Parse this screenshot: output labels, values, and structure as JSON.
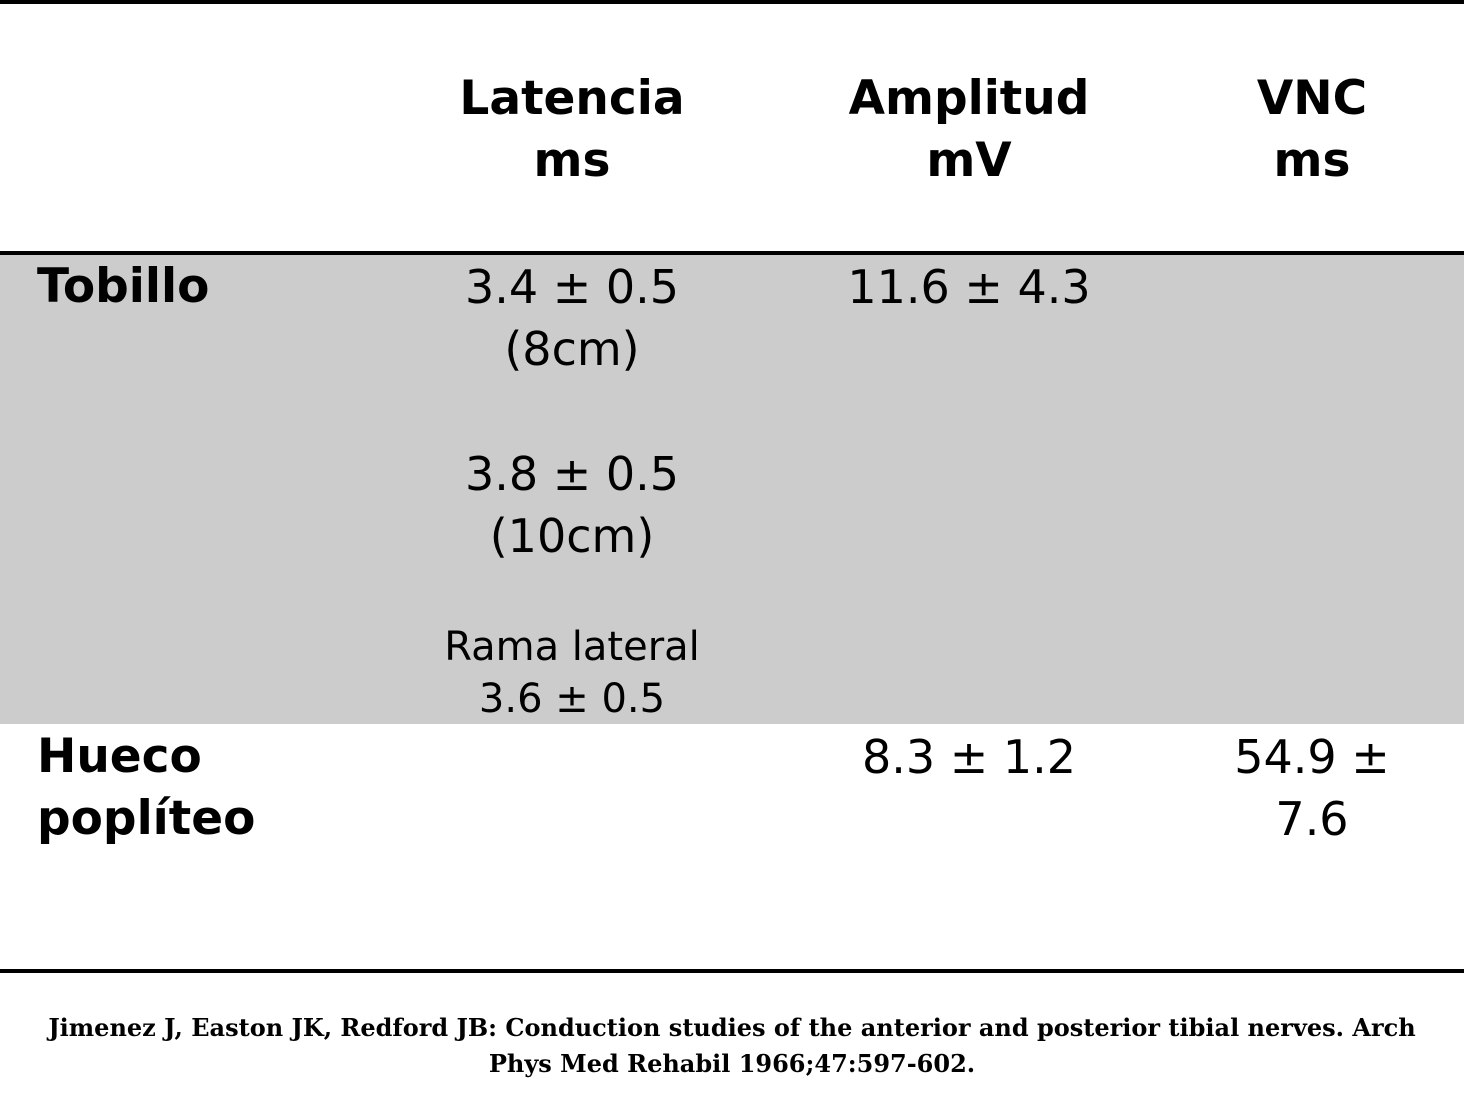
{
  "header": {
    "latencia": {
      "line1": "Latencia",
      "line2": "ms"
    },
    "amplitud": {
      "line1": "Amplitud",
      "line2": "mV"
    },
    "vnc": {
      "line1": "VNC",
      "line2": "ms"
    }
  },
  "rows": {
    "tobillo": {
      "label": "Tobillo",
      "latencia": {
        "a_value": "3.4 ± 0.5",
        "a_dist": "(8cm)",
        "b_value": "3.8 ± 0.5",
        "b_dist": "(10cm)",
        "c_label": "Rama lateral",
        "c_value": "3.6 ± 0.5"
      },
      "amplitud": "11.6 ± 4.3",
      "vnc": ""
    },
    "hueco": {
      "label_line1": "Hueco",
      "label_line2": "poplíteo",
      "latencia": "",
      "amplitud": "8.3 ± 1.2",
      "vnc_line1": "54.9 ±",
      "vnc_line2": "7.6"
    }
  },
  "citation": {
    "line1": "Jimenez J, Easton JK, Redford JB: Conduction studies of the anterior and posterior tibial nerves. Arch",
    "line2": "Phys Med Rehabil 1966;47:597-602."
  }
}
